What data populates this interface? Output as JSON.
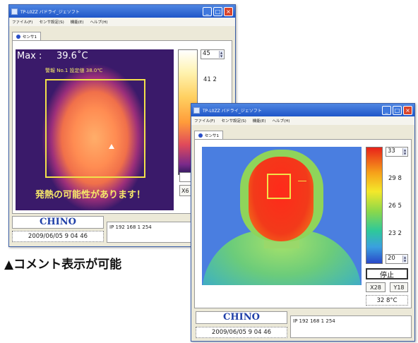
{
  "window1": {
    "title": "TP-L0ZZ バドライ_ジェソフト",
    "menu": [
      "ファイル(F)",
      "センサ設定(S)",
      "機能(E)",
      "ヘルプ(H)"
    ],
    "tab_label": "センサ1",
    "thermal": {
      "max_label": "Max :",
      "max_value": "39.6˚C",
      "alarm_text": "警報 No.1  設定値 38.0℃",
      "alert_message": "発熱の可能性があります！"
    },
    "scale": {
      "top": "45",
      "mid": "41 2"
    },
    "partial_button": "X6",
    "brand": "CHINO",
    "datetime": "2009/06/05 9 04 46",
    "ip": "IP 192 168 1 254"
  },
  "window2": {
    "title": "TP-L0ZZ バドライ_ジェソフト",
    "menu": [
      "ファイル(F)",
      "センサ設定(S)",
      "機能(E)",
      "ヘルプ(H)"
    ],
    "tab_label": "センサ1",
    "scale": {
      "top": "33",
      "t2": "29 8",
      "t3": "26 5",
      "t4": "23 2",
      "bottom": "20"
    },
    "stop_label": "停止",
    "x_label": "X28",
    "y_label": "Y18",
    "temp_readout": "32 8°C",
    "brand": "CHINO",
    "datetime": "2009/06/05 9 04 46",
    "ip": "IP 192 168 1 254"
  },
  "caption": "▲コメント表示が可能",
  "colors": {
    "titlebar": "#1f56c8",
    "brand": "#1f3fa8",
    "alert_text": "#f6e86a",
    "roi_box": "#f2e14a"
  }
}
